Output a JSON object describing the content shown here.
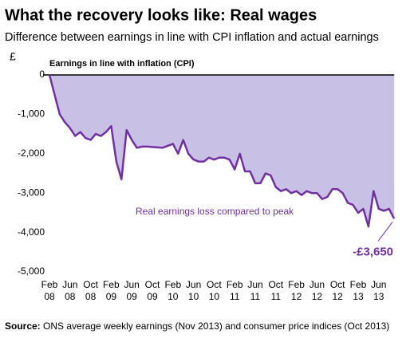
{
  "chart_data": {
    "type": "area",
    "title": "What the recovery looks like: Real wages",
    "subtitle": "Difference between earnings in line with CPI inflation and actual earnings",
    "y_unit": "£",
    "baseline_label": "Earnings in line with inflation (CPI)",
    "area_label": "Real earnings loss compared to peak",
    "end_label": "-£3,650",
    "source_label": "Source:",
    "source": "ONS average weekly earnings (Nov 2013) and consumer price indices (Oct 2013)",
    "categories": [
      "Feb 08",
      null,
      null,
      null,
      "Jun 08",
      null,
      null,
      null,
      "Oct 08",
      null,
      null,
      null,
      "Feb 09",
      null,
      null,
      null,
      "Jun 09",
      null,
      null,
      null,
      "Oct 09",
      null,
      null,
      null,
      "Feb 10",
      null,
      null,
      null,
      "Jun 10",
      null,
      null,
      null,
      "Oct 10",
      null,
      null,
      null,
      "Feb 11",
      null,
      null,
      null,
      "Jun 11",
      null,
      null,
      null,
      "Oct 11",
      null,
      null,
      null,
      "Feb 12",
      null,
      null,
      null,
      "Jun 12",
      null,
      null,
      null,
      "Oct 12",
      null,
      null,
      null,
      "Feb 13",
      null,
      null,
      null,
      "Jun 13",
      null,
      null,
      null
    ],
    "series": [
      {
        "name": "Real earnings loss compared to peak",
        "color": "#7030a0",
        "fill": "#c9c0e6",
        "values": [
          0,
          -500,
          -1000,
          -1200,
          -1350,
          -1550,
          -1450,
          -1600,
          -1650,
          -1500,
          -1550,
          -1450,
          -1300,
          -2200,
          -2650,
          -1400,
          -1650,
          -1850,
          -1820,
          -1820,
          -1830,
          -1840,
          -1850,
          -1800,
          -1750,
          -2000,
          -1650,
          -2000,
          -2150,
          -2200,
          -2200,
          -2100,
          -2150,
          -2100,
          -2100,
          -2150,
          -2400,
          -2000,
          -2450,
          -2450,
          -2750,
          -2750,
          -2500,
          -2550,
          -2850,
          -2950,
          -2900,
          -3000,
          -2950,
          -3050,
          -2950,
          -3000,
          -3000,
          -3150,
          -3100,
          -2900,
          -2900,
          -3000,
          -3250,
          -3300,
          -3500,
          -3400,
          -3850,
          -2950,
          -3400,
          -3450,
          -3400,
          -3650
        ]
      }
    ],
    "ylim": [
      -5000,
      0
    ],
    "yticks": [
      0,
      {
        "value": -1000,
        "label": "-1,000"
      },
      {
        "value": -2000,
        "label": "-2,000"
      },
      {
        "value": -3000,
        "label": "-3,000"
      },
      {
        "value": -4000,
        "label": "-4,000"
      },
      {
        "value": -5000,
        "label": "-5,000"
      }
    ]
  }
}
